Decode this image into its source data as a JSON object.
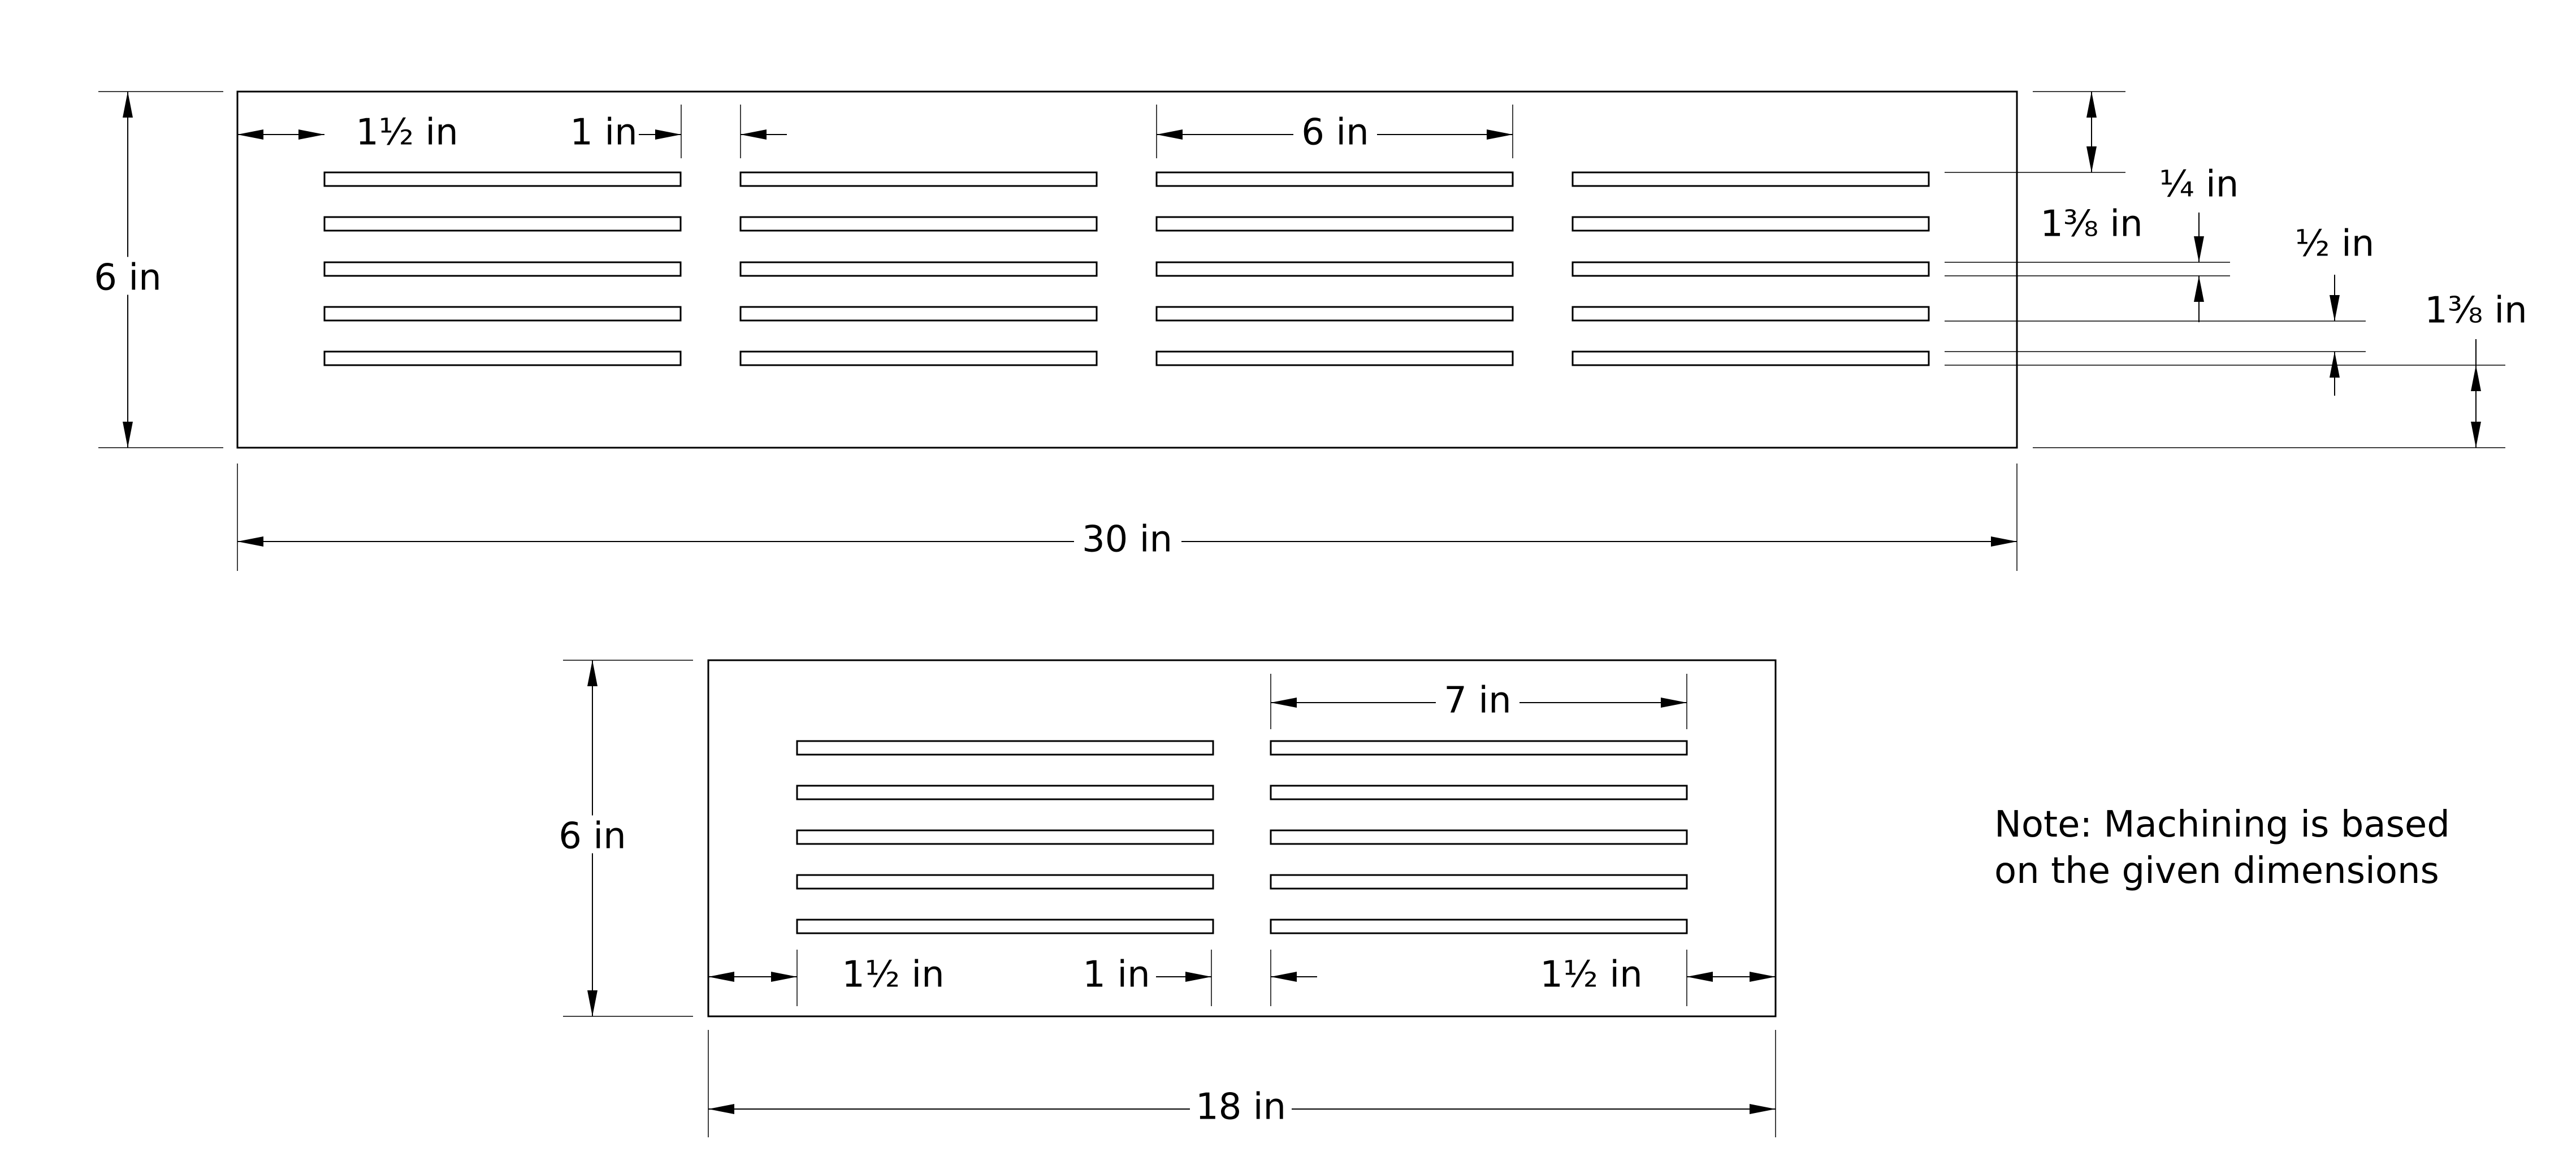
{
  "dimensions": {
    "top_plate": {
      "width": "30 in",
      "height": "6 in",
      "left_margin": "1½ in",
      "slot_gap": "1 in",
      "slot_length": "6 in",
      "top_offset": "1⅜ in",
      "slot_width": "¼ in",
      "slot_pitch": "½ in",
      "bottom_offset": "1⅜ in"
    },
    "bottom_plate": {
      "width": "18 in",
      "height": "6 in",
      "left_margin": "1½ in",
      "slot_gap": "1 in",
      "slot_length": "7 in",
      "right_margin": "1½ in"
    }
  },
  "note": {
    "line1": "Note: Machining is based",
    "line2": "on the given dimensions"
  }
}
